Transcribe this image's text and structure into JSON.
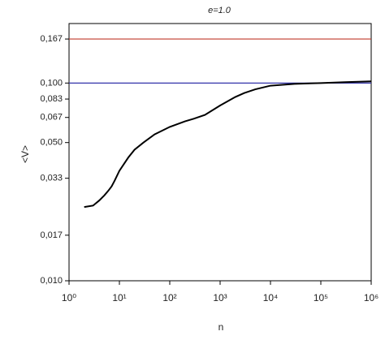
{
  "chart_data": {
    "type": "line",
    "title": "e=1.0",
    "xlabel": "n",
    "ylabel": "<V>",
    "xscale": "log",
    "yscale": "log",
    "xlim": [
      1,
      1000000
    ],
    "xticks": [
      {
        "value": 1,
        "label": "10⁰"
      },
      {
        "value": 10,
        "label": "10¹"
      },
      {
        "value": 100,
        "label": "10²"
      },
      {
        "value": 1000,
        "label": "10³"
      },
      {
        "value": 10000,
        "label": "10⁴"
      },
      {
        "value": 100000,
        "label": "10⁵"
      },
      {
        "value": 1000000,
        "label": "10⁶"
      }
    ],
    "ylim": [
      0.01,
      0.2
    ],
    "yticks": [
      {
        "value": 0.01,
        "label": "0,010"
      },
      {
        "value": 0.017,
        "label": "0,017"
      },
      {
        "value": 0.033,
        "label": "0,033"
      },
      {
        "value": 0.05,
        "label": "0,050"
      },
      {
        "value": 0.067,
        "label": "0,067"
      },
      {
        "value": 0.083,
        "label": "0,083"
      },
      {
        "value": 0.1,
        "label": "0,100"
      },
      {
        "value": 0.167,
        "label": "0,167"
      }
    ],
    "hlines": [
      {
        "value": 0.167,
        "color": "#c0392b"
      },
      {
        "value": 0.1,
        "color": "#3333aa"
      }
    ],
    "series": [
      {
        "color": "#000000",
        "x": [
          2,
          3,
          4,
          5,
          6,
          7,
          8,
          10,
          15,
          20,
          30,
          50,
          100,
          200,
          300,
          500,
          1000,
          2000,
          3000,
          5000,
          10000,
          30000,
          100000,
          300000,
          1000000
        ],
        "values": [
          0.0236,
          0.024,
          0.0255,
          0.027,
          0.0285,
          0.03,
          0.032,
          0.036,
          0.042,
          0.046,
          0.05,
          0.055,
          0.06,
          0.064,
          0.066,
          0.069,
          0.077,
          0.085,
          0.089,
          0.093,
          0.097,
          0.099,
          0.1,
          0.101,
          0.102
        ]
      }
    ]
  }
}
